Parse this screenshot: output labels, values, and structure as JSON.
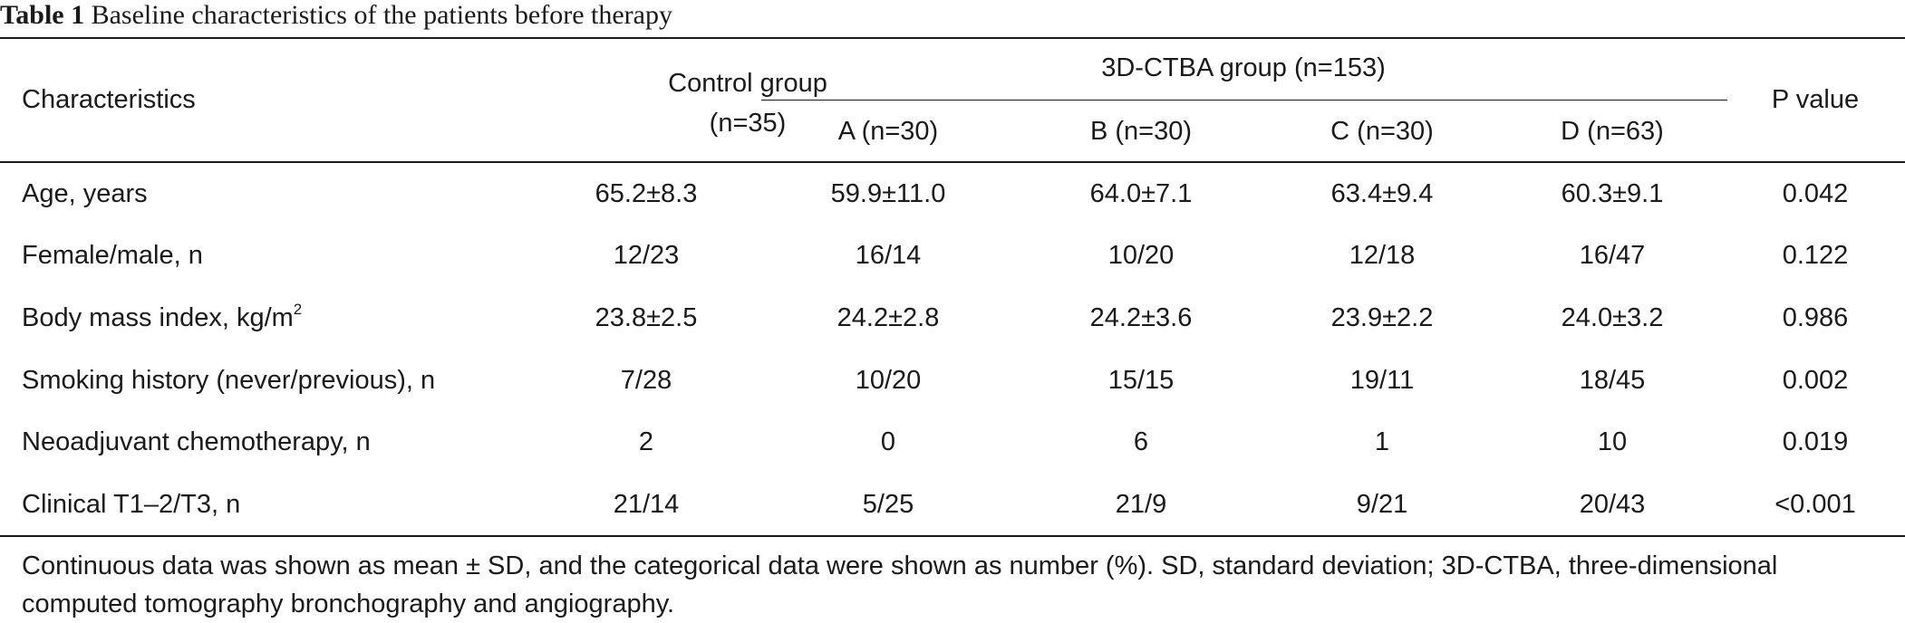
{
  "table": {
    "caption_label": "Table 1",
    "caption_text": "Baseline characteristics of the patients before therapy",
    "header": {
      "characteristics": "Characteristics",
      "control_line1": "Control group",
      "control_line2": "(n=35)",
      "group_span": "3D-CTBA group (n=153)",
      "sub_a": "A (n=30)",
      "sub_b": "B (n=30)",
      "sub_c": "C (n=30)",
      "sub_d": "D (n=63)",
      "p_value": "P value"
    },
    "rows": [
      {
        "label": "Age, years",
        "control": "65.2±8.3",
        "a": "59.9±11.0",
        "b": "64.0±7.1",
        "c": "63.4±9.4",
        "d": "60.3±9.1",
        "p": "0.042"
      },
      {
        "label": "Female/male, n",
        "control": "12/23",
        "a": "16/14",
        "b": "10/20",
        "c": "12/18",
        "d": "16/47",
        "p": "0.122"
      },
      {
        "label": "Body mass index, kg/m",
        "label_sup": "2",
        "control": "23.8±2.5",
        "a": "24.2±2.8",
        "b": "24.2±3.6",
        "c": "23.9±2.2",
        "d": "24.0±3.2",
        "p": "0.986"
      },
      {
        "label": "Smoking history (never/previous), n",
        "control": "7/28",
        "a": "10/20",
        "b": "15/15",
        "c": "19/11",
        "d": "18/45",
        "p": "0.002"
      },
      {
        "label": "Neoadjuvant chemotherapy, n",
        "control": "2",
        "a": "0",
        "b": "6",
        "c": "1",
        "d": "10",
        "p": "0.019"
      },
      {
        "label": "Clinical T1–2/T3, n",
        "control": "21/14",
        "a": "5/25",
        "b": "21/9",
        "c": "9/21",
        "d": "20/43",
        "p": "<0.001"
      }
    ],
    "footnote": "Continuous data was shown as mean ± SD, and the categorical data were shown as number (%). SD, standard deviation; 3D-CTBA, three-dimensional computed tomography bronchography and angiography."
  }
}
